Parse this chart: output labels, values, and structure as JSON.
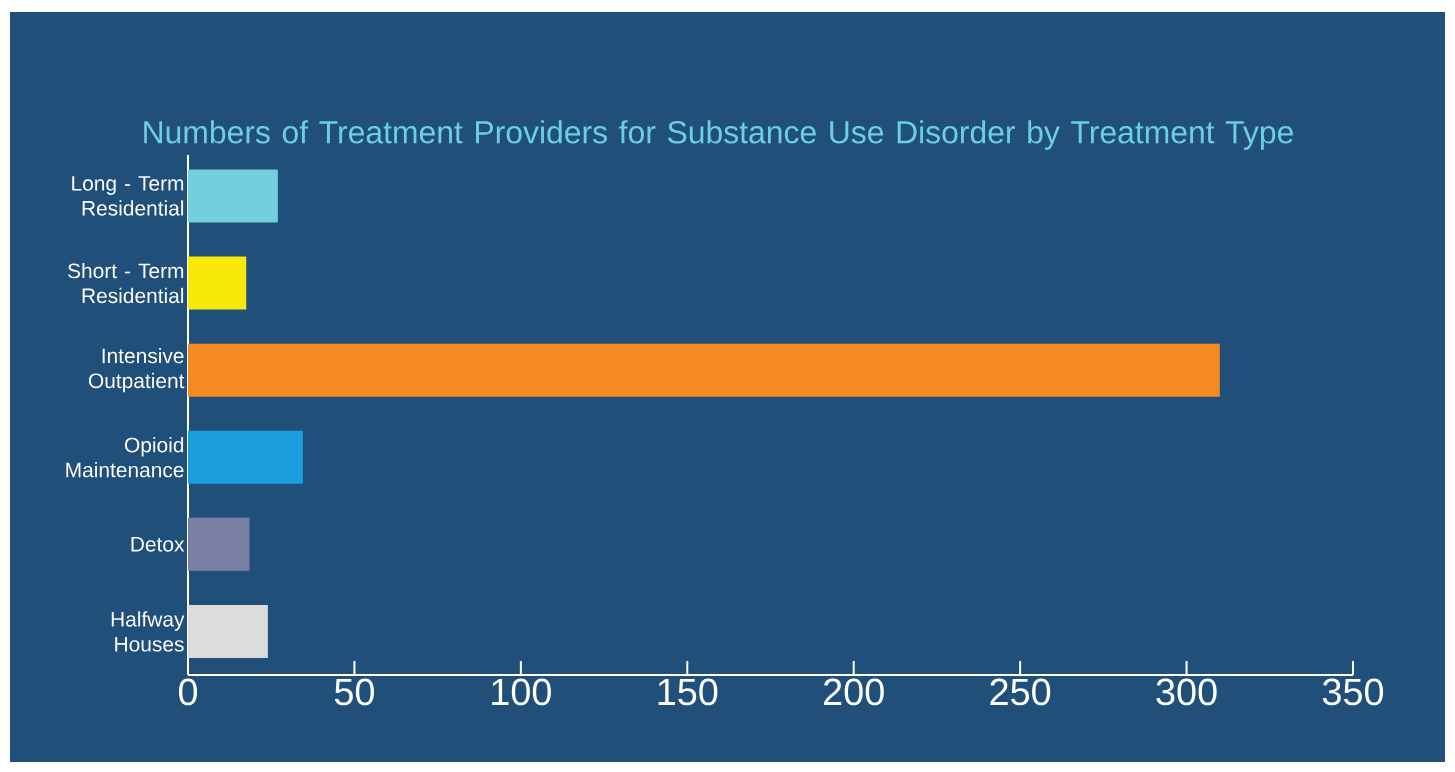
{
  "chart_data": {
    "type": "bar",
    "orientation": "horizontal",
    "title": "Numbers of Treatment Providers for Substance Use Disorder by Treatment Type",
    "categories": [
      "Long - Term Residential",
      "Short - Term Residential",
      "Intensive Outpatient",
      "Opioid Maintenance",
      "Detox",
      "Halfway Houses"
    ],
    "values": [
      27,
      17.5,
      310,
      34.5,
      18.5,
      24
    ],
    "colors": [
      "#72cfdc",
      "#f9e90a",
      "#f58a22",
      "#1a9fdc",
      "#7a80a3",
      "#dcdcdc"
    ],
    "xlim": [
      0,
      350
    ],
    "xticks": [
      0,
      50,
      100,
      150,
      200,
      250,
      300,
      350
    ],
    "grid": false
  }
}
